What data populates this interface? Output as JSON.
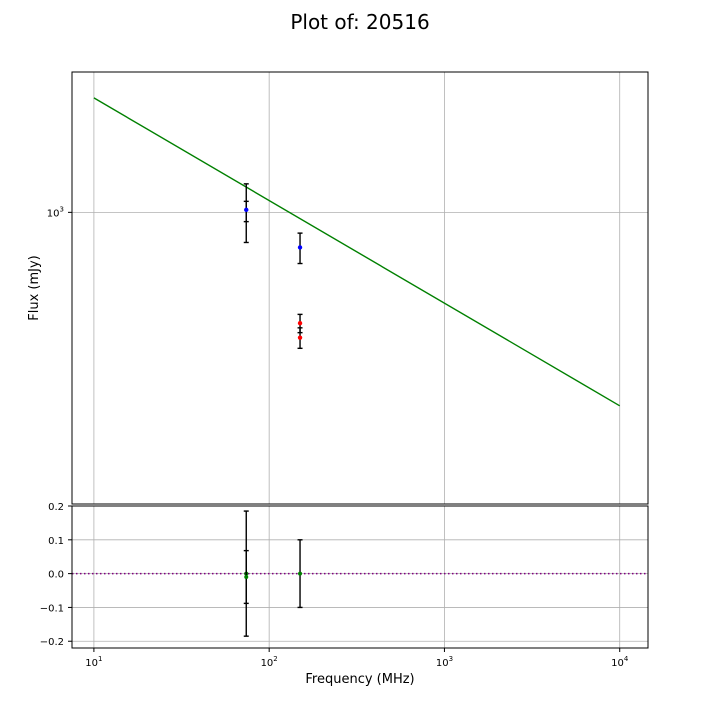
{
  "chart_data": [
    {
      "type": "scatter",
      "panel": "main",
      "title": "Plot of: 20516",
      "xlabel": "Frequency (MHz)",
      "ylabel": "Flux (mJy)",
      "xscale": "log",
      "yscale": "log",
      "xlim": [
        7.5,
        14500
      ],
      "ylim": [
        102,
        3000
      ],
      "x_ticks": [
        {
          "value": 10,
          "base": "10",
          "exp": "1"
        },
        {
          "value": 100,
          "base": "10",
          "exp": "2"
        },
        {
          "value": 1000,
          "base": "10",
          "exp": "3"
        },
        {
          "value": 10000,
          "base": "10",
          "exp": "4"
        }
      ],
      "y_ticks": [
        {
          "value": 1000,
          "base": "10",
          "exp": "3"
        }
      ],
      "grid": true,
      "fit_line": {
        "color": "#008000",
        "x": [
          10,
          10000
        ],
        "y": [
          2450,
          220
        ]
      },
      "series": [
        {
          "color": "#0000ff",
          "x": [
            74,
            150
          ],
          "y": [
            1020,
            760
          ],
          "yerr_low": [
            230,
            90
          ],
          "yerr_high": [
            230,
            90
          ]
        },
        {
          "color": "#ff0000",
          "x": [
            150,
            150
          ],
          "y": [
            420,
            375
          ],
          "yerr_low": [
            30,
            30
          ],
          "yerr_high": [
            30,
            30
          ]
        }
      ],
      "extra_errorbars": [
        {
          "x": 74,
          "y_low": 930,
          "y_high": 1090
        }
      ]
    },
    {
      "type": "scatter",
      "panel": "residuals",
      "xscale": "log",
      "xlim": [
        7.5,
        14500
      ],
      "ylim": [
        -0.22,
        0.2
      ],
      "y_ticks": [
        "−0.2",
        "−0.1",
        "0.0",
        "0.1",
        "0.2"
      ],
      "y_tick_values": [
        -0.2,
        -0.1,
        0.0,
        0.1,
        0.2
      ],
      "grid": true,
      "zero_line": {
        "y": 0,
        "color": "#800080",
        "style": "dotted"
      },
      "series": [
        {
          "color": "#008000",
          "x": [
            74,
            74,
            150
          ],
          "y": [
            0.0,
            -0.01,
            0.0
          ],
          "yerr": [
            0.185,
            0.078,
            0.1
          ]
        }
      ],
      "errorbar_color": "#000000"
    }
  ]
}
